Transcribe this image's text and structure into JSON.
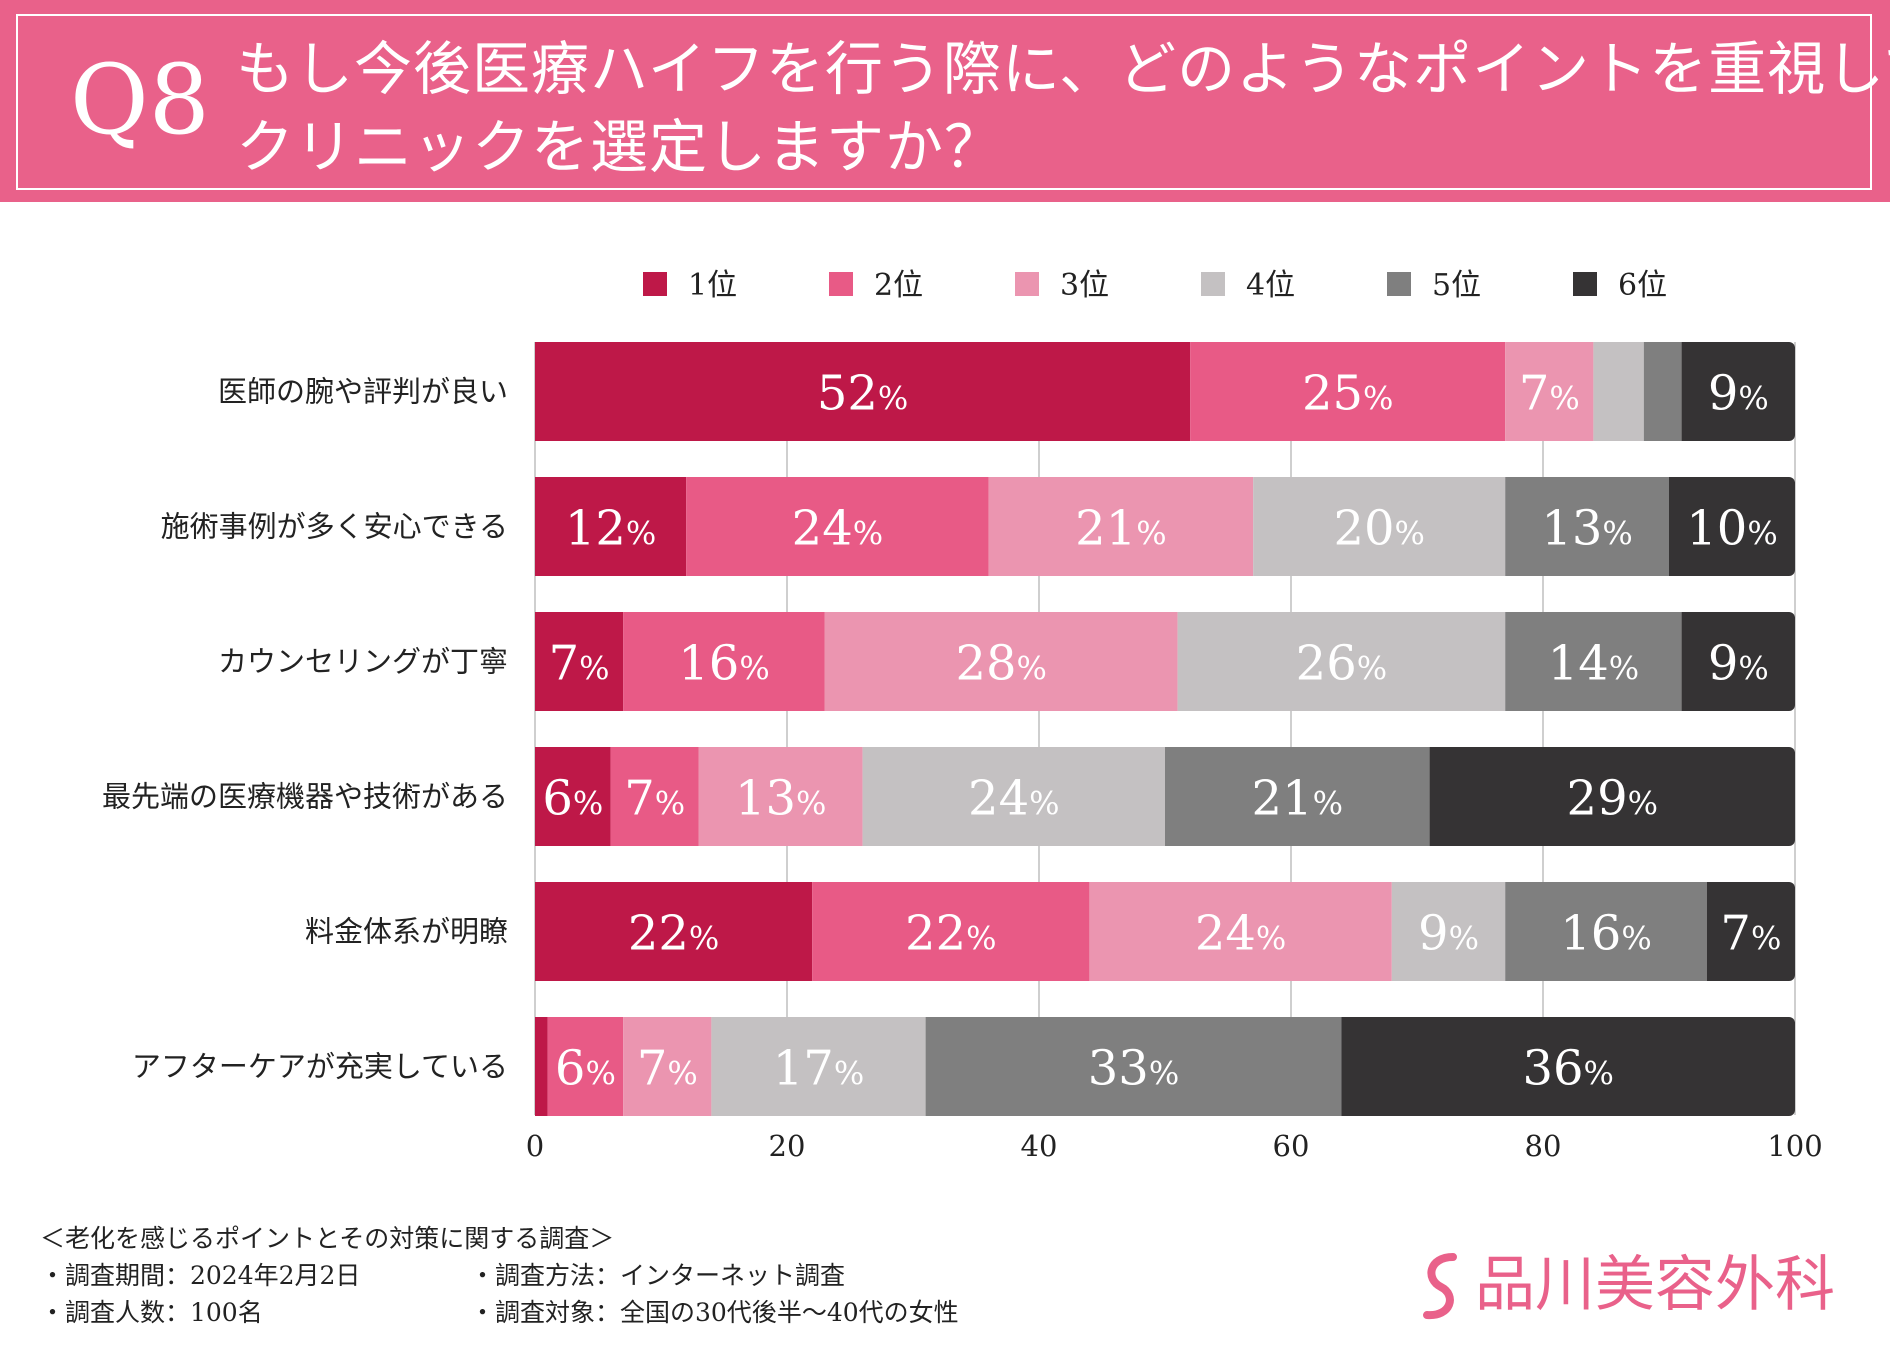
{
  "header": {
    "q_number": "Q8",
    "title_line1": "もし今後医療ハイフを行う際に、どのようなポイントを重視して",
    "title_line2": "クリニックを選定しますか？"
  },
  "colors": {
    "header_bg": "#e9618a",
    "rank1": "#be1848",
    "rank2": "#e85a86",
    "rank3": "#eb95b0",
    "rank4": "#c4c1c2",
    "rank5": "#7f7f7f",
    "rank6": "#353334",
    "grid": "#cfcfcf",
    "logo": "#e9618a"
  },
  "chart_data": {
    "type": "bar",
    "orientation": "horizontal",
    "stacked": true,
    "title": "もし今後医療ハイフを行う際に、どのようなポイントを重視してクリニックを選定しますか？",
    "xlim": [
      0,
      100
    ],
    "xticks": [
      "0",
      "20",
      "40",
      "60",
      "80",
      "100"
    ],
    "xtick_values": [
      0,
      20,
      40,
      60,
      80,
      100
    ],
    "grid": true,
    "legend_position": "top",
    "percent_suffix": "%",
    "categories": [
      "医師の腕や評判が良い",
      "施術事例が多く安心できる",
      "カウンセリングが丁寧",
      "最先端の医療機器や技術がある",
      "料金体系が明瞭",
      "アフターケアが充実している"
    ],
    "series": [
      {
        "name": "1位",
        "values": [
          52,
          12,
          7,
          6,
          22,
          1
        ],
        "labels": [
          "52",
          "12",
          "7",
          "6",
          "22",
          ""
        ]
      },
      {
        "name": "2位",
        "values": [
          25,
          24,
          16,
          7,
          22,
          6
        ],
        "labels": [
          "25",
          "24",
          "16",
          "7",
          "22",
          "6"
        ]
      },
      {
        "name": "3位",
        "values": [
          7,
          21,
          28,
          13,
          24,
          7
        ],
        "labels": [
          "7",
          "21",
          "28",
          "13",
          "24",
          "7"
        ]
      },
      {
        "name": "4位",
        "values": [
          4,
          20,
          26,
          24,
          9,
          17
        ],
        "labels": [
          "",
          "20",
          "26",
          "24",
          "9",
          "17"
        ]
      },
      {
        "name": "5位",
        "values": [
          3,
          13,
          14,
          21,
          16,
          33
        ],
        "labels": [
          "",
          "13",
          "14",
          "21",
          "16",
          "33"
        ]
      },
      {
        "name": "6位",
        "values": [
          9,
          10,
          9,
          29,
          7,
          36
        ],
        "labels": [
          "9",
          "10",
          "9",
          "29",
          "7",
          "36"
        ]
      }
    ]
  },
  "footer": {
    "survey_title": "＜老化を感じるポイントとその対策に関する調査＞",
    "period": "・調査期間：2024年2月2日",
    "method": "・調査方法：インターネット調査",
    "count": "・調査人数：100名",
    "target": "・調査対象：全国の30代後半〜40代の女性"
  },
  "logo": {
    "text": "品川美容外科"
  }
}
